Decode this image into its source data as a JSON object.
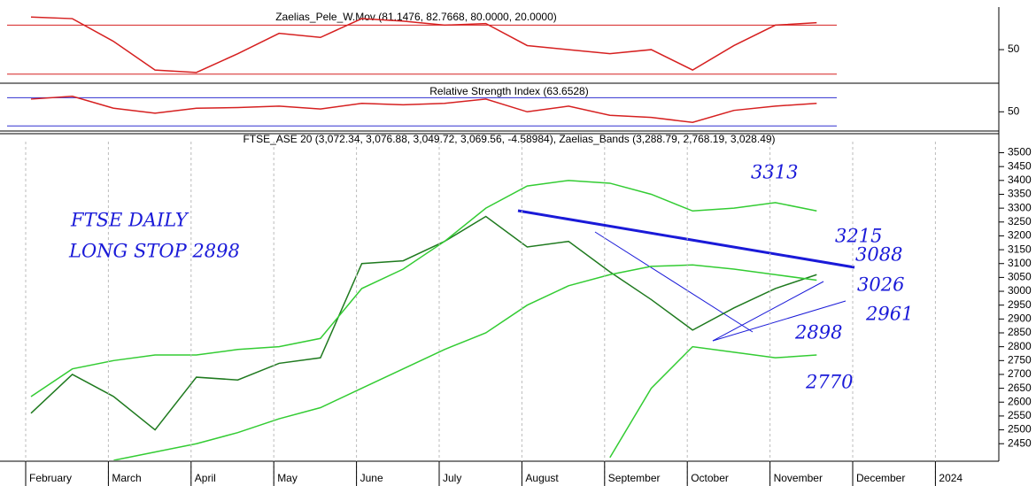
{
  "chart_data": [
    {
      "type": "line",
      "title": "Zaelias_Pele_W.Mov (81.1476, 82.7668, 80.0000, 20.0000)",
      "ylim": [
        11,
        100
      ],
      "yticks": [
        50
      ],
      "levels": [
        80,
        20
      ],
      "level_color": "#d62020",
      "series": [
        {
          "color": "#d62020",
          "values": [
            90,
            88,
            60,
            25,
            22,
            45,
            70,
            65,
            88,
            85,
            80,
            82,
            55,
            50,
            45,
            50,
            25,
            55,
            80,
            83,
            null,
            null,
            null
          ]
        }
      ]
    },
    {
      "type": "line",
      "title": "Relative Strength Index (63.6528)",
      "ylim": [
        24,
        88
      ],
      "yticks": [
        50
      ],
      "levels": [
        70,
        30
      ],
      "level_color": "#3030d0",
      "series": [
        {
          "color": "#d62020",
          "values": [
            68,
            72,
            55,
            48,
            55,
            56,
            58,
            54,
            62,
            60,
            62,
            68,
            50,
            58,
            45,
            42,
            35,
            52,
            58,
            62,
            null,
            null,
            null
          ]
        }
      ]
    },
    {
      "type": "line",
      "title": "FTSE_ASE 20 (3,072.34, 3,076.88, 3,049.72, 3,069.56, -4.58984), Zaelias_Bands (3,288.79, 2,768.19, 3,028.49)",
      "categories": [
        "February",
        null,
        "March",
        null,
        "April",
        null,
        "May",
        null,
        "June",
        null,
        "July",
        null,
        "August",
        null,
        "September",
        null,
        "October",
        null,
        "November",
        null,
        "December",
        null,
        "2024"
      ],
      "ylim": [
        2390,
        3540
      ],
      "yticks": [
        2450,
        2500,
        2550,
        2600,
        2650,
        2700,
        2750,
        2800,
        2850,
        2900,
        2950,
        3000,
        3050,
        3100,
        3150,
        3200,
        3250,
        3300,
        3350,
        3400,
        3450,
        3500
      ],
      "series": [
        {
          "color": "#1f7a1f",
          "values": [
            2560,
            2700,
            2620,
            2500,
            2690,
            2680,
            2740,
            2760,
            3100,
            3110,
            3180,
            3270,
            3160,
            3180,
            3070,
            2970,
            2860,
            2940,
            3010,
            3060,
            null,
            null,
            null
          ]
        },
        {
          "color": "#33cc33",
          "values": [
            2620,
            2720,
            2750,
            2770,
            2770,
            2790,
            2800,
            2830,
            3010,
            3080,
            3180,
            3300,
            3380,
            3400,
            3390,
            3350,
            3290,
            3300,
            3320,
            3290,
            null,
            null,
            null
          ]
        },
        {
          "color": "#33cc33",
          "values": [
            null,
            null,
            2390,
            2420,
            2450,
            2490,
            2540,
            2580,
            2650,
            2720,
            2790,
            2850,
            2950,
            3020,
            3060,
            3090,
            3095,
            3080,
            3060,
            3040,
            null,
            null,
            null
          ]
        },
        {
          "color": "#33cc33",
          "values": [
            null,
            null,
            null,
            null,
            null,
            null,
            null,
            null,
            null,
            null,
            null,
            null,
            null,
            null,
            2400,
            2650,
            2800,
            2780,
            2760,
            2770,
            null,
            null,
            null
          ]
        }
      ],
      "annotations": [
        "FTSE DAILY",
        "LONG STOP 2898",
        "3313",
        "3215",
        "3088",
        "3026",
        "2961",
        "2898",
        "2770"
      ]
    }
  ]
}
